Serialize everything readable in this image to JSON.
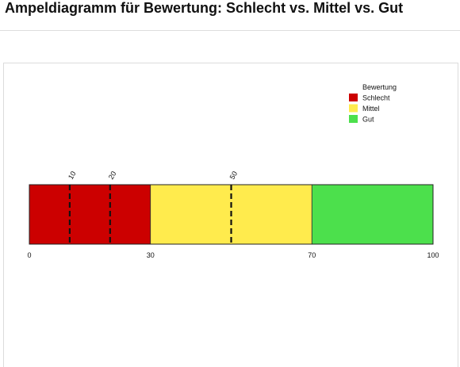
{
  "page": {
    "title": "Ampeldiagramm für Bewertung: Schlecht vs. Mittel vs. Gut"
  },
  "chart_data": {
    "type": "bar",
    "title": "",
    "xlabel": "",
    "ylabel": "",
    "xlim": [
      0,
      100
    ],
    "x_ticks": [
      "0",
      "30",
      "70",
      "100"
    ],
    "legend": {
      "title": "Bewertung",
      "placement": "top-right"
    },
    "series": [
      {
        "name": "Schlecht",
        "start": 0,
        "end": 30,
        "color": "#cc0000"
      },
      {
        "name": "Mittel",
        "start": 30,
        "end": 70,
        "color": "#ffeb4d"
      },
      {
        "name": "Gut",
        "start": 70,
        "end": 100,
        "color": "#4ce04c"
      }
    ],
    "markers": [
      {
        "value": 10,
        "label": "10"
      },
      {
        "value": 20,
        "label": "20"
      },
      {
        "value": 50,
        "label": "50"
      }
    ]
  }
}
